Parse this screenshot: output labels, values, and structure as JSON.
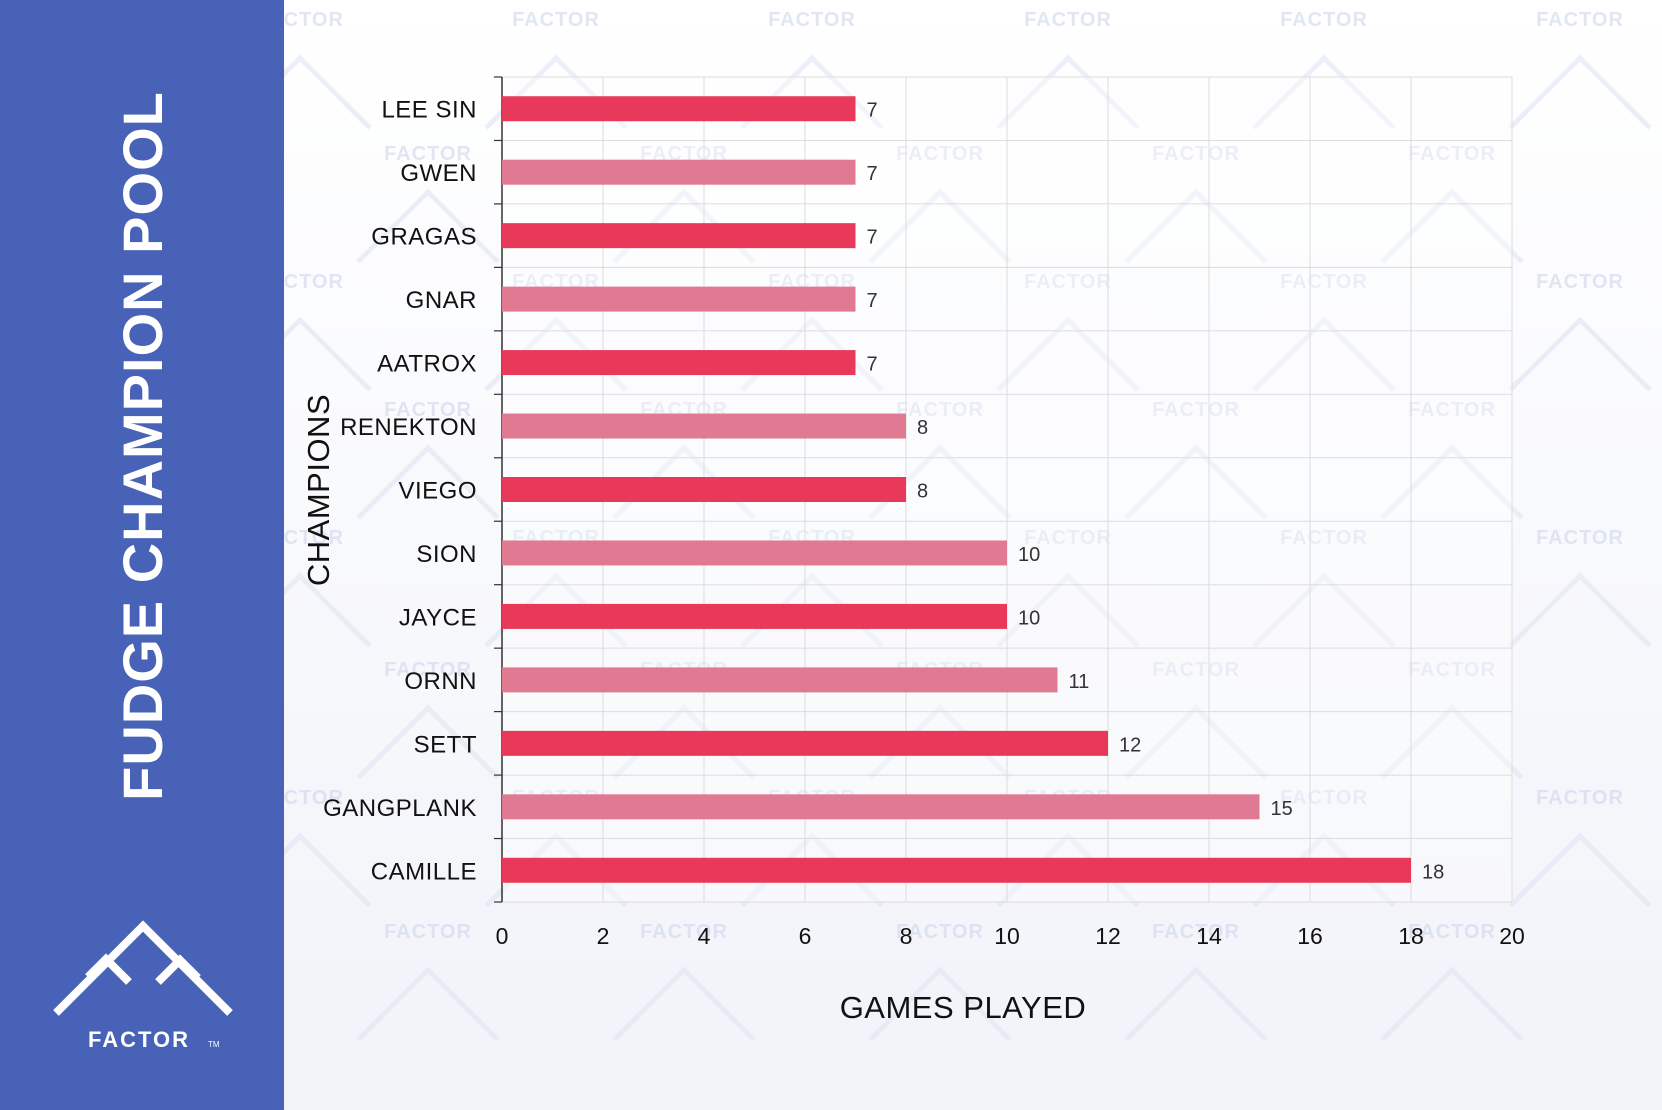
{
  "page_title": "FUDGE CHAMPION POOL",
  "brand": {
    "name": "FACTOR",
    "trademark": "TM",
    "sidebar_color": "#4762b6"
  },
  "watermark_text": "FACTOR",
  "chart_data": {
    "type": "bar",
    "orientation": "horizontal",
    "title": "FUDGE CHAMPION POOL",
    "xlabel": "GAMES PLAYED",
    "ylabel": "CHAMPIONS",
    "xlim": [
      0,
      20
    ],
    "xticks": [
      0,
      2,
      4,
      6,
      8,
      10,
      12,
      14,
      16,
      18,
      20
    ],
    "grid": true,
    "categories": [
      "LEE SIN",
      "GWEN",
      "GRAGAS",
      "GNAR",
      "AATROX",
      "RENEKTON",
      "VIEGO",
      "SION",
      "JAYCE",
      "ORNN",
      "SETT",
      "GANGPLANK",
      "CAMILLE"
    ],
    "values": [
      7,
      7,
      7,
      7,
      7,
      8,
      8,
      10,
      10,
      11,
      12,
      15,
      18
    ],
    "colors": {
      "primary": "#e8395b",
      "alternate": "#e07a93"
    }
  }
}
